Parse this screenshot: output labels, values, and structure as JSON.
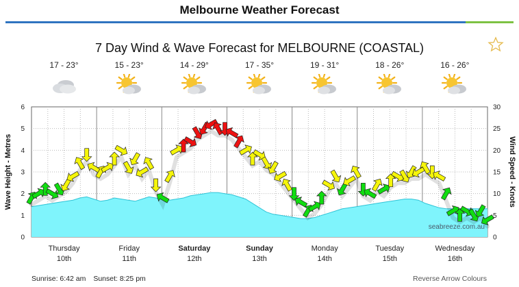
{
  "page": {
    "title": "Melbourne Weather Forecast"
  },
  "chart_title": "7 Day Wind & Wave Forecast for MELBOURNE (COASTAL)",
  "days": [
    {
      "temp": "17 - 23°",
      "icon": "cloudy-icon",
      "label": "Thursday",
      "date": "10th",
      "bold": false
    },
    {
      "temp": "15 - 23°",
      "icon": "partly-sunny-icon",
      "label": "Friday",
      "date": "11th",
      "bold": false
    },
    {
      "temp": "14 - 29°",
      "icon": "partly-sunny-icon",
      "label": "Saturday",
      "date": "12th",
      "bold": true
    },
    {
      "temp": "17 - 35°",
      "icon": "partly-sunny-icon",
      "label": "Sunday",
      "date": "13th",
      "bold": true
    },
    {
      "temp": "19 - 31°",
      "icon": "partly-sunny-icon",
      "label": "Monday",
      "date": "14th",
      "bold": false
    },
    {
      "temp": "18 - 26°",
      "icon": "partly-sunny-icon",
      "label": "Tuesday",
      "date": "15th",
      "bold": false
    },
    {
      "temp": "16 - 26°",
      "icon": "partly-sunny-icon",
      "label": "Wednesday",
      "date": "16th",
      "bold": false
    }
  ],
  "footer": {
    "sunrise": "Sunrise: 6:42 am",
    "sunset": "Sunset: 8:25 pm",
    "reverse_arrows": "Reverse Arrow Colours"
  },
  "watermark": "seabreeze.com.au",
  "colors": {
    "wave": "#7ff4fc",
    "wave_edge": "#2fc3d6",
    "wind_light": "#11dd11",
    "wind_medium": "#f5f50a",
    "wind_strong": "#ee1111",
    "grid": "#b9b9b9"
  },
  "chart_data": {
    "type": "line",
    "x_unit": "3-hourly steps from Thursday 10th 00:00",
    "left_axis": {
      "label": "Wave Height - Metres",
      "ylim": [
        0,
        6
      ],
      "ticks": [
        "0",
        "1",
        "2",
        "3",
        "4",
        "5",
        "6"
      ]
    },
    "right_axis": {
      "label": "Wind Speed - Knots",
      "ylim": [
        0,
        30
      ],
      "ticks": [
        "0",
        "5",
        "10",
        "15",
        "20",
        "25",
        "30"
      ]
    },
    "wave_height_m": [
      1.4,
      1.45,
      1.5,
      1.55,
      1.6,
      1.65,
      1.7,
      1.8,
      1.85,
      1.75,
      1.65,
      1.7,
      1.8,
      1.75,
      1.7,
      1.65,
      1.75,
      1.85,
      1.8,
      1.75,
      1.7,
      1.75,
      1.8,
      1.9,
      1.95,
      2.0,
      2.05,
      2.05,
      2.0,
      1.95,
      1.85,
      1.75,
      1.55,
      1.35,
      1.15,
      1.05,
      1.0,
      0.95,
      0.9,
      0.85,
      0.85,
      0.9,
      1.0,
      1.1,
      1.2,
      1.3,
      1.35,
      1.4,
      1.45,
      1.5,
      1.55,
      1.6,
      1.65,
      1.7,
      1.75,
      1.75,
      1.7,
      1.55,
      1.45,
      1.35,
      1.3,
      1.3,
      1.3,
      1.3,
      1.3,
      1.3,
      1.3
    ],
    "wind_speed_kn": [
      9,
      10,
      11,
      10,
      11,
      12,
      14,
      17,
      19,
      16,
      15,
      16,
      18,
      20,
      16,
      18,
      15,
      17,
      12,
      9,
      14,
      20,
      21,
      22,
      24,
      25,
      26,
      25,
      25,
      24,
      22,
      20,
      18,
      19,
      17,
      16,
      14,
      12,
      10,
      8,
      6,
      7,
      9,
      12,
      14,
      11,
      13,
      15,
      11,
      10,
      12,
      11,
      13,
      14,
      14,
      15,
      15,
      16,
      15,
      14,
      10,
      6,
      5,
      6,
      5,
      6,
      4
    ],
    "wind_band": {
      "light_below": 12,
      "strong_above": 20
    }
  }
}
